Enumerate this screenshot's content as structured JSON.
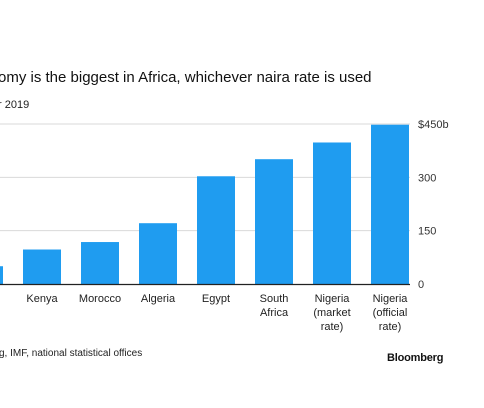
{
  "title": "omy is the biggest in Africa, whichever naira rate is used",
  "subtitle": "r 2019",
  "source": "g, IMF, national statistical offices",
  "brand": "Bloomberg",
  "colors": {
    "bar": "#1f9cf0",
    "grid": "#d9d9d9",
    "axis": "#222222"
  },
  "chart_data": {
    "type": "bar",
    "categories": [
      [
        ""
      ],
      [
        "Kenya"
      ],
      [
        "Morocco"
      ],
      [
        "Algeria"
      ],
      [
        "Egypt"
      ],
      [
        "South",
        "Africa"
      ],
      [
        "Nigeria",
        "(market",
        "rate)"
      ],
      [
        "Nigeria",
        "(official",
        "rate)"
      ]
    ],
    "values": [
      50,
      97,
      118,
      171,
      303,
      351,
      398,
      448
    ],
    "ylim": [
      0,
      450
    ],
    "yticks": [
      {
        "value": 0,
        "label": "0"
      },
      {
        "value": 150,
        "label": "150"
      },
      {
        "value": 300,
        "label": "300"
      },
      {
        "value": 450,
        "label": "$450b"
      }
    ],
    "grid": true
  }
}
